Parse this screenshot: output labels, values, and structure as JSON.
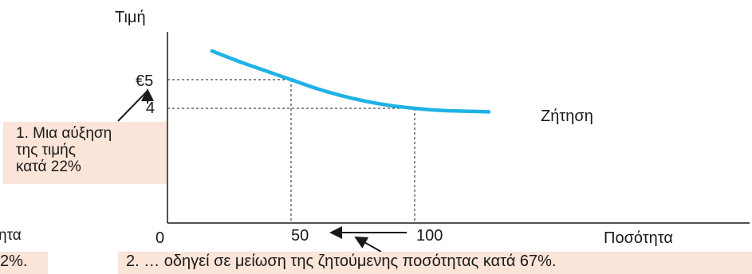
{
  "chart_data": {
    "type": "line",
    "title": "",
    "ylabel": "Τιμή",
    "xlabel": "Ποσότητα",
    "origin_label": "0",
    "x_ticks": [
      "50",
      "100"
    ],
    "y_ticks": [
      "€5",
      "4"
    ],
    "series": [
      {
        "name": "Ζήτηση",
        "color": "#1fb2e6",
        "x": [
          18,
          30,
          40,
          50,
          60,
          70,
          80,
          90,
          100,
          110,
          120,
          130
        ],
        "y": [
          6.0,
          5.6,
          5.3,
          5.0,
          4.7,
          4.45,
          4.25,
          4.1,
          4.0,
          3.93,
          3.9,
          3.88
        ]
      }
    ],
    "reference_points": [
      {
        "x": 50,
        "y": 5
      },
      {
        "x": 100,
        "y": 4
      }
    ],
    "xlim": [
      0,
      135
    ],
    "ylim": [
      0,
      7.5
    ],
    "grid": false
  },
  "annotations": {
    "note1_lines": [
      "1. Μια αύξηση",
      "της τιμής",
      "κατά 22%"
    ],
    "note2": "2. … οδηγεί σε μείωση της ζητούμενης ποσότητας κατά 67%.",
    "left_fragment_top": "ητα",
    "left_fragment_bottom": "2%."
  },
  "colors": {
    "curve": "#1fb2e6",
    "note_background": "#fbe4d8",
    "axis": "#1a1a1a"
  }
}
